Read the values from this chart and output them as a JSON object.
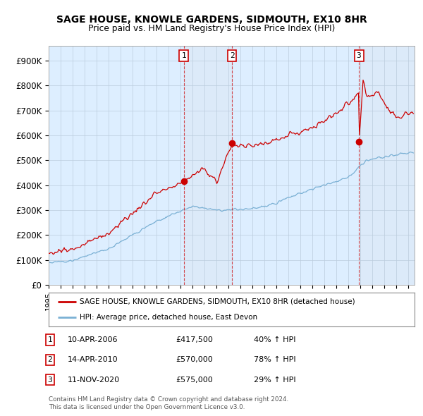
{
  "title": "SAGE HOUSE, KNOWLE GARDENS, SIDMOUTH, EX10 8HR",
  "subtitle": "Price paid vs. HM Land Registry's House Price Index (HPI)",
  "ylabel_ticks": [
    "£0",
    "£100K",
    "£200K",
    "£300K",
    "£400K",
    "£500K",
    "£600K",
    "£700K",
    "£800K",
    "£900K"
  ],
  "ytick_values": [
    0,
    100000,
    200000,
    300000,
    400000,
    500000,
    600000,
    700000,
    800000,
    900000
  ],
  "ylim": [
    0,
    960000
  ],
  "xlim_start": 1995.0,
  "xlim_end": 2025.5,
  "sale_color": "#cc0000",
  "hpi_color": "#7ab0d4",
  "shade_color": "#dce8f5",
  "background_color": "#ddeeff",
  "plot_bg": "#ffffff",
  "grid_color": "#bbccdd",
  "sale_events": [
    {
      "num": 1,
      "year_x": 2006.27,
      "price": 417500,
      "date": "10-APR-2006",
      "pct": "40%"
    },
    {
      "num": 2,
      "year_x": 2010.28,
      "price": 570000,
      "date": "14-APR-2010",
      "pct": "78%"
    },
    {
      "num": 3,
      "year_x": 2020.86,
      "price": 575000,
      "date": "11-NOV-2020",
      "pct": "29%"
    }
  ],
  "legend_sale_label": "SAGE HOUSE, KNOWLE GARDENS, SIDMOUTH, EX10 8HR (detached house)",
  "legend_hpi_label": "HPI: Average price, detached house, East Devon",
  "footer_line1": "Contains HM Land Registry data © Crown copyright and database right 2024.",
  "footer_line2": "This data is licensed under the Open Government Licence v3.0.",
  "row_dates": [
    "10-APR-2006",
    "14-APR-2010",
    "11-NOV-2020"
  ],
  "row_prices": [
    "£417,500",
    "£570,000",
    "£575,000"
  ],
  "row_pcts": [
    "40% ↑ HPI",
    "78% ↑ HPI",
    "29% ↑ HPI"
  ]
}
